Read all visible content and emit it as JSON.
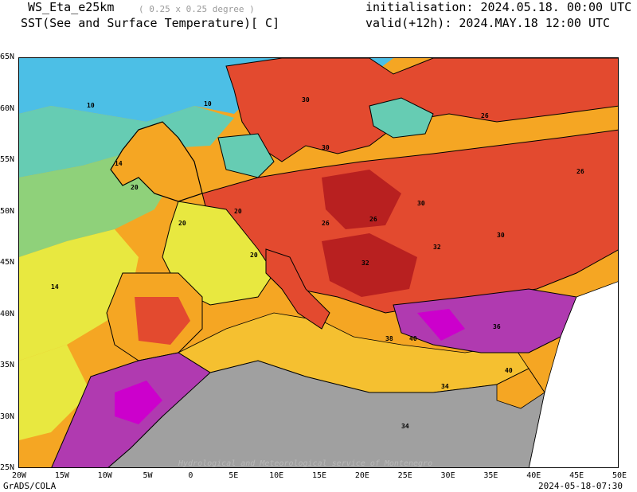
{
  "header": {
    "model": "WS_Eta_e25km",
    "resolution": "( 0.25 x 0.25 degree )",
    "field": "SST(See and Surface Temperature)[ C]",
    "initialisation": "initialisation: 2024.05.18. 00:00 UTC",
    "valid": "valid(+12h): 2024.MAY.18 12:00 UTC"
  },
  "map": {
    "lat_labels": [
      "65N",
      "60N",
      "55N",
      "50N",
      "45N",
      "40N",
      "35N",
      "30N",
      "25N"
    ],
    "lon_labels": [
      "20W",
      "15W",
      "10W",
      "5W",
      "0",
      "5E",
      "10E",
      "15E",
      "20E",
      "25E",
      "30E",
      "35E",
      "40E",
      "45E",
      "50E"
    ],
    "contour_labels": [
      "10",
      "10",
      "14",
      "14",
      "20",
      "20",
      "20",
      "20",
      "26",
      "26",
      "26",
      "26",
      "30",
      "30",
      "30",
      "30",
      "32",
      "32",
      "34",
      "34",
      "36",
      "38",
      "40",
      "40"
    ],
    "watermark": "Hydrological and Meteorological service of Montenegro",
    "colors": {
      "cold_sea": "#4cbfe6",
      "cool_sea": "#66ccb3",
      "mild": "#8fd17a",
      "warm": "#e8e840",
      "orange": "#f5a623",
      "red": "#e34a2f",
      "dark_red": "#b82020",
      "purple": "#b03ab0",
      "magenta": "#cc00cc",
      "no_data": "#a0a0a0"
    }
  },
  "footer": {
    "left": "GrADS/COLA",
    "right": "2024-05-18-07:30"
  }
}
